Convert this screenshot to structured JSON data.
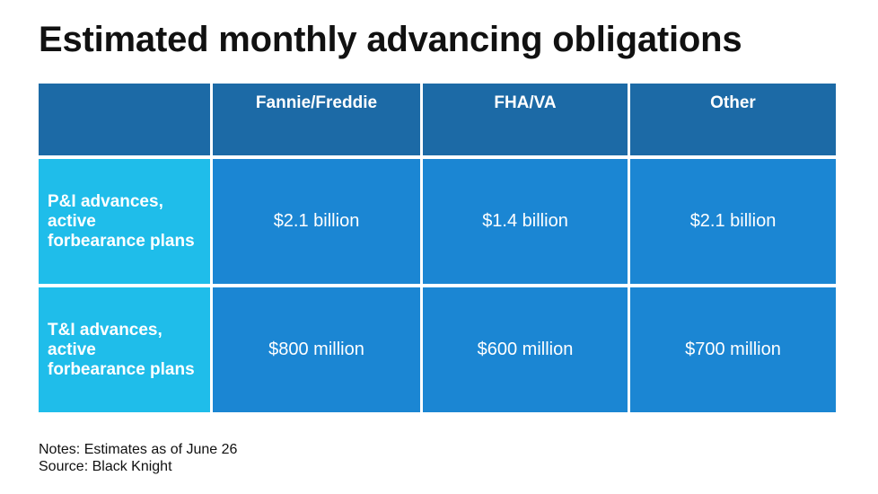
{
  "chart_data": {
    "type": "table",
    "title": "Estimated monthly advancing obligations",
    "columns": [
      "Fannie/Freddie",
      "FHA/VA",
      "Other"
    ],
    "rows": [
      {
        "label": "P&I advances, active forbearance plans",
        "label_lines": [
          "P&I advances,",
          "active",
          "forbearance plans"
        ],
        "values": [
          "$2.1 billion",
          "$1.4 billion",
          "$2.1 billion"
        ]
      },
      {
        "label": "T&I advances, active forbearance plans",
        "label_lines": [
          "T&I advances,",
          "active",
          "forbearance plans"
        ],
        "values": [
          "$800 million",
          "$600 million",
          "$700 million"
        ]
      }
    ],
    "notes": "Notes: Estimates as of June 26",
    "source": "Source: Black Knight"
  },
  "colors": {
    "header_bg": "#1c6aa6",
    "row_header_bg": "#1fbdea",
    "value_bg": "#1b86d3"
  }
}
